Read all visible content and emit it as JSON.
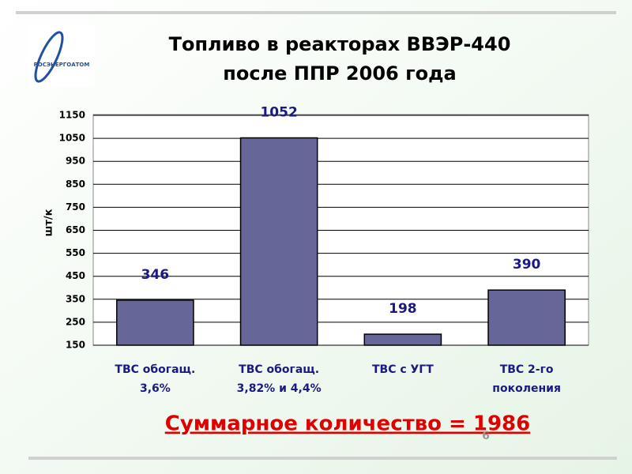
{
  "logo": "РОСЭНЕРГОАТОМ",
  "page_number": "6",
  "chart_data": {
    "type": "bar",
    "title": "Топливо в реакторах ВВЭР-440\nпосле ППР 2006 года",
    "y_label": "шт/к",
    "categories": [
      "ТВС обогащ.\n3,6%",
      "ТВС обогащ.\n3,82% и 4,4%",
      "ТВС с УГТ",
      "ТВС 2-го\nпоколения"
    ],
    "values": [
      346,
      1052,
      198,
      390
    ],
    "color": "#666699",
    "ylim": [
      150,
      1150
    ],
    "yticks": [
      150,
      250,
      350,
      450,
      550,
      650,
      750,
      850,
      950,
      1050,
      1150
    ],
    "grid": true,
    "annotation": "Суммарное количество = 1986"
  }
}
